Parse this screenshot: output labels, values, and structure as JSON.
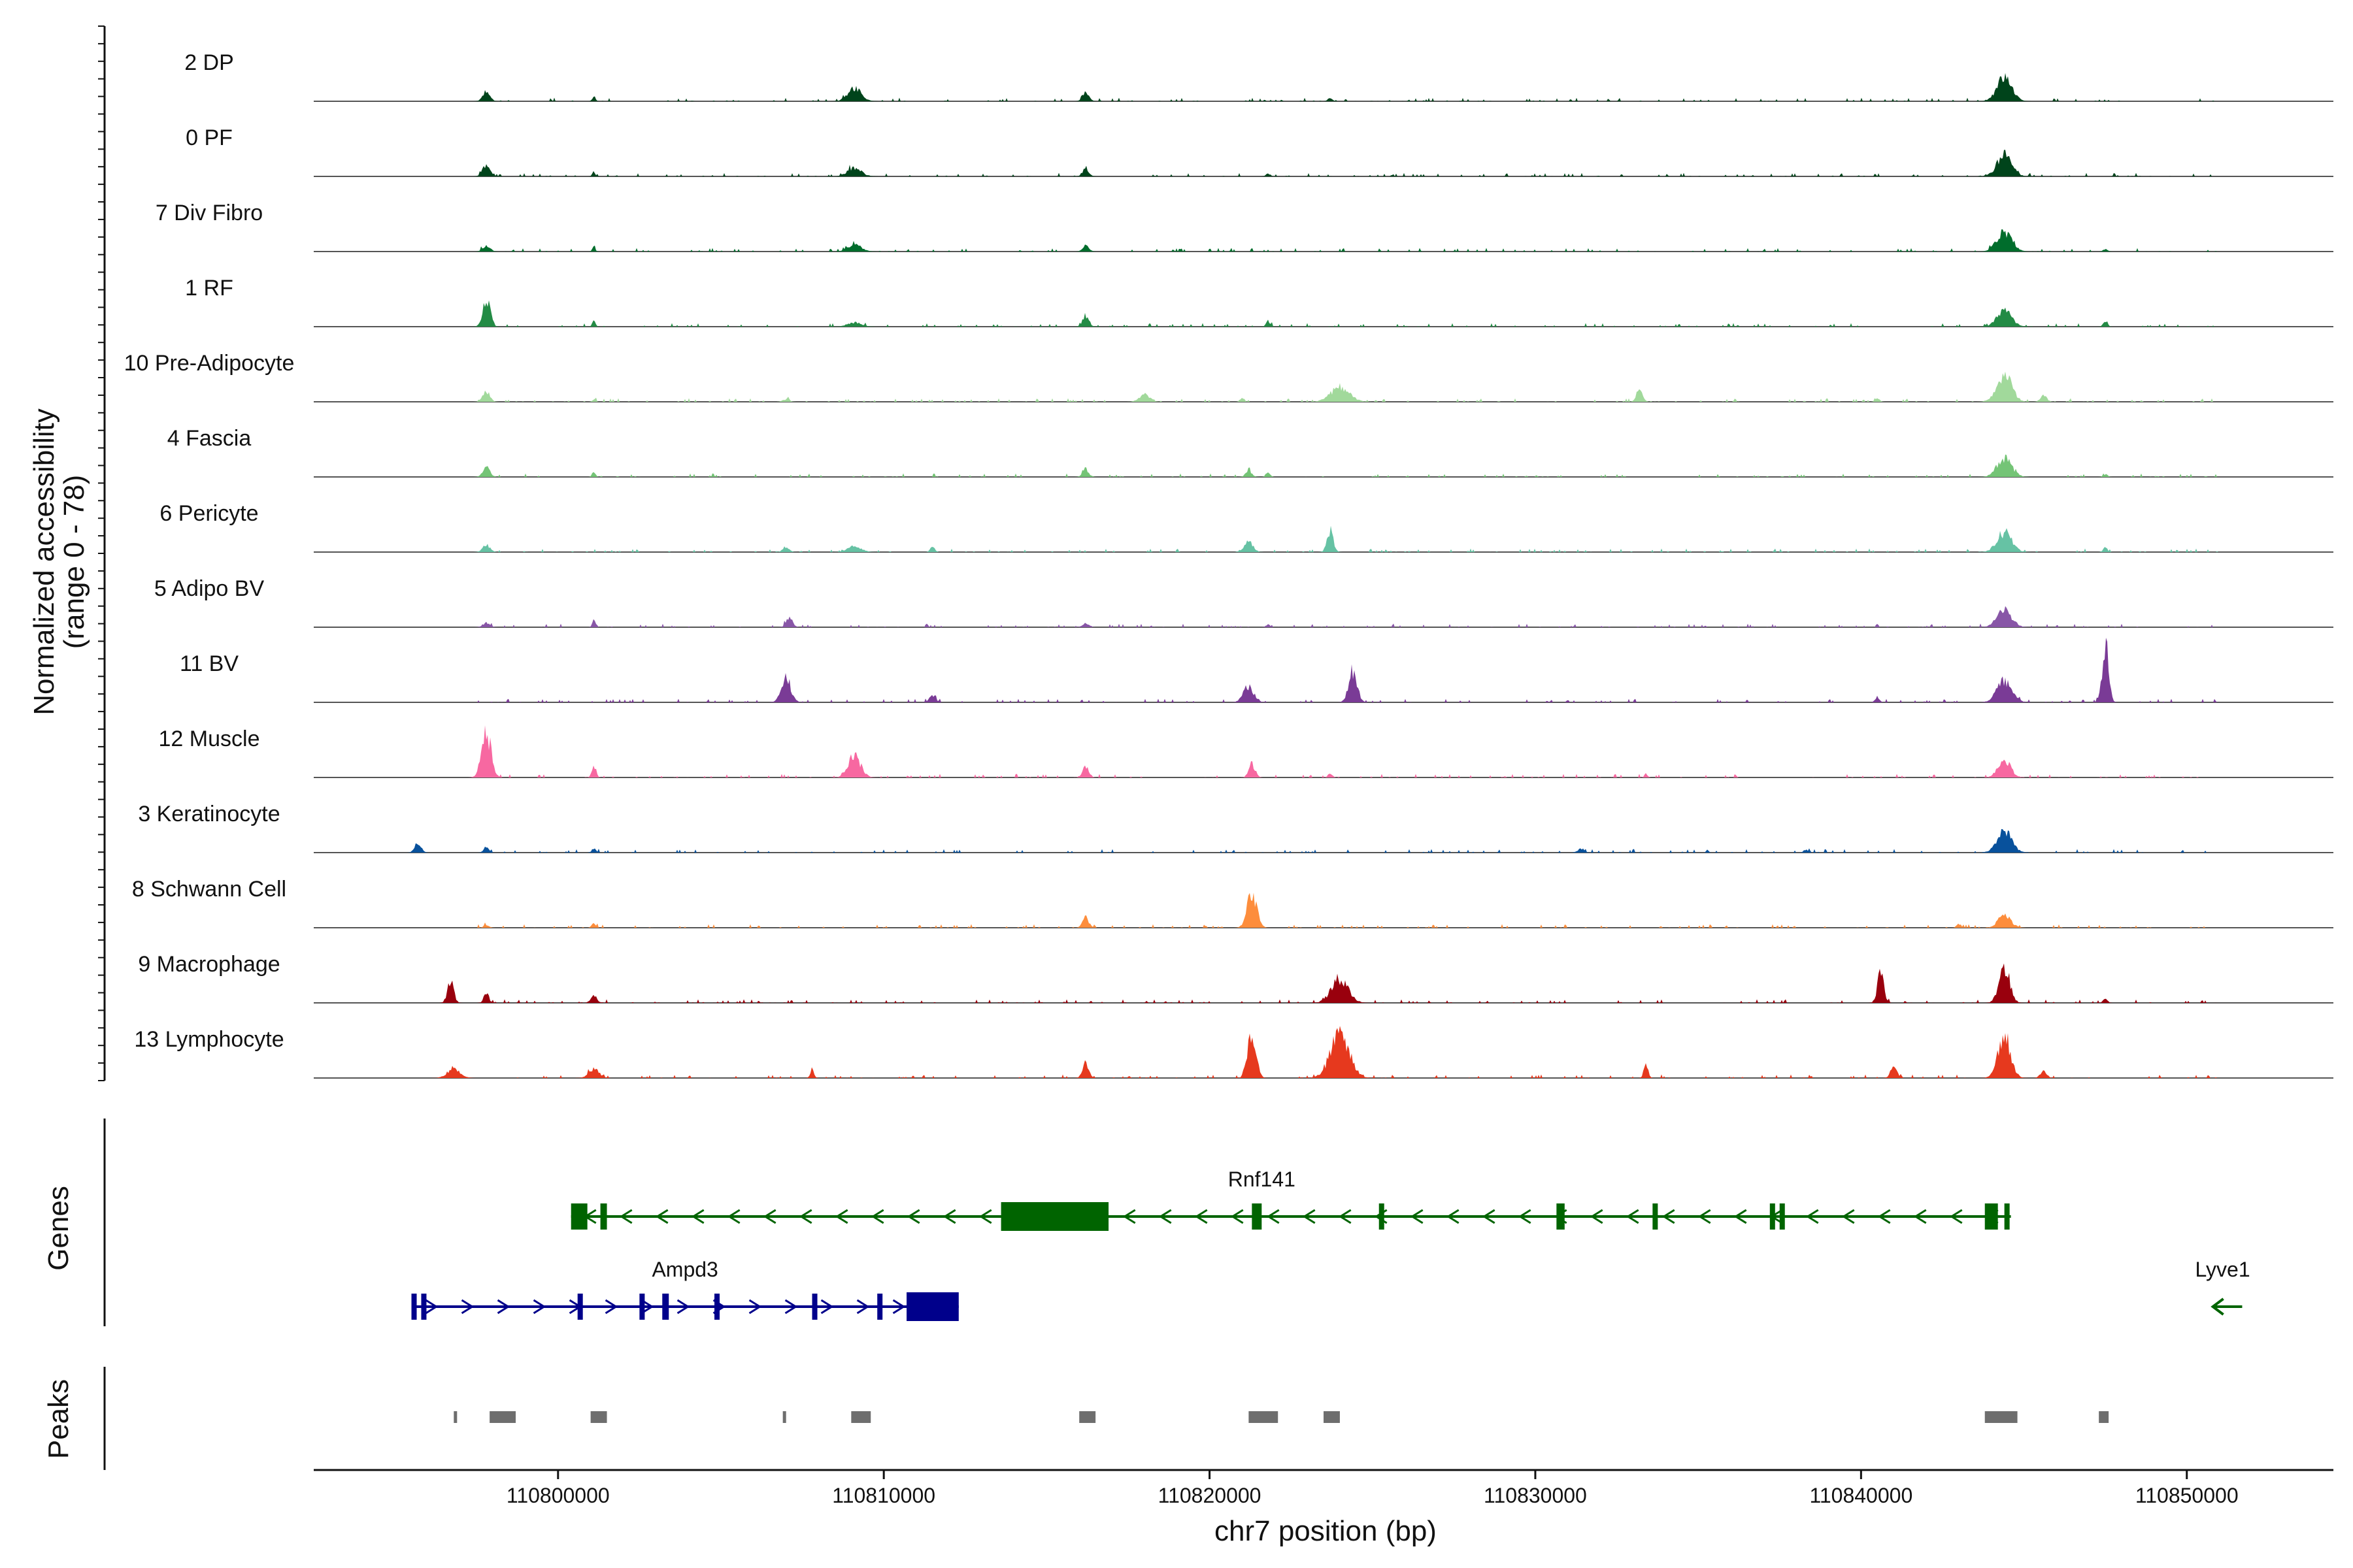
{
  "chart_data": {
    "type": "area",
    "title": "",
    "chromosome": "chr7",
    "xlabel": "chr7 position (bp)",
    "ylabel": "Normalized accessibility",
    "ylabel_range": "(range 0 - 78)",
    "ylim": [
      0,
      78
    ],
    "xlim": [
      110792500,
      110854500
    ],
    "x_ticks": [
      110800000,
      110810000,
      110820000,
      110830000,
      110840000,
      110850000
    ],
    "x_tick_labels": [
      "110800000",
      "110810000",
      "110820000",
      "110830000",
      "110840000",
      "110850000"
    ],
    "genes_panel_label": "Genes",
    "peaks_panel_label": "Peaks",
    "tracks": [
      {
        "name": "2 DP",
        "color": "#00441b",
        "peaks": [
          [
            110797800,
            12,
            350
          ],
          [
            110801100,
            8,
            150
          ],
          [
            110809100,
            18,
            650
          ],
          [
            110816200,
            14,
            300
          ],
          [
            110823700,
            5,
            200
          ],
          [
            110844400,
            34,
            700
          ]
        ]
      },
      {
        "name": "0 PF",
        "color": "#00441b",
        "peaks": [
          [
            110797800,
            16,
            350
          ],
          [
            110801100,
            6,
            150
          ],
          [
            110809100,
            12,
            650
          ],
          [
            110816200,
            12,
            300
          ],
          [
            110821800,
            4,
            200
          ],
          [
            110844400,
            30,
            700
          ]
        ]
      },
      {
        "name": "7 Div Fibro",
        "color": "#006d2c",
        "peaks": [
          [
            110797800,
            8,
            350
          ],
          [
            110801100,
            6,
            150
          ],
          [
            110809100,
            10,
            650
          ],
          [
            110816200,
            8,
            300
          ],
          [
            110844400,
            28,
            700
          ],
          [
            110847500,
            4,
            200
          ]
        ]
      },
      {
        "name": "1 RF",
        "color": "#238b45",
        "peaks": [
          [
            110797800,
            40,
            350
          ],
          [
            110801100,
            10,
            150
          ],
          [
            110809100,
            6,
            650
          ],
          [
            110816200,
            16,
            300
          ],
          [
            110821800,
            8,
            200
          ],
          [
            110844400,
            22,
            700
          ],
          [
            110847500,
            8,
            200
          ]
        ]
      },
      {
        "name": "10 Pre-Adipocyte",
        "color": "#a1d99b",
        "peaks": [
          [
            110797800,
            14,
            350
          ],
          [
            110801100,
            4,
            150
          ],
          [
            110807000,
            4,
            300
          ],
          [
            110818000,
            10,
            500
          ],
          [
            110821000,
            6,
            200
          ],
          [
            110824000,
            20,
            900
          ],
          [
            110833200,
            14,
            300
          ],
          [
            110840500,
            6,
            200
          ],
          [
            110844400,
            38,
            700
          ],
          [
            110845600,
            10,
            300
          ]
        ]
      },
      {
        "name": "4 Fascia",
        "color": "#74c476",
        "peaks": [
          [
            110797800,
            12,
            350
          ],
          [
            110801100,
            8,
            150
          ],
          [
            110816200,
            10,
            300
          ],
          [
            110821200,
            8,
            300
          ],
          [
            110821800,
            6,
            200
          ],
          [
            110844400,
            26,
            700
          ],
          [
            110847500,
            4,
            200
          ]
        ]
      },
      {
        "name": "6 Pericyte",
        "color": "#66c2a4",
        "peaks": [
          [
            110797800,
            10,
            350
          ],
          [
            110807000,
            8,
            300
          ],
          [
            110809100,
            8,
            650
          ],
          [
            110811500,
            10,
            200
          ],
          [
            110821200,
            16,
            400
          ],
          [
            110823700,
            30,
            300
          ],
          [
            110844400,
            28,
            700
          ],
          [
            110847500,
            6,
            200
          ]
        ]
      },
      {
        "name": "5 Adipo BV",
        "color": "#8856a7",
        "peaks": [
          [
            110797800,
            6,
            350
          ],
          [
            110801100,
            10,
            150
          ],
          [
            110807100,
            14,
            300
          ],
          [
            110816200,
            6,
            300
          ],
          [
            110821800,
            4,
            200
          ],
          [
            110844400,
            24,
            700
          ]
        ]
      },
      {
        "name": "11 BV",
        "color": "#7a3b96",
        "peaks": [
          [
            110807000,
            34,
            450
          ],
          [
            110811500,
            10,
            300
          ],
          [
            110821200,
            22,
            500
          ],
          [
            110824400,
            44,
            400
          ],
          [
            110844400,
            30,
            700
          ],
          [
            110847500,
            78,
            300
          ],
          [
            110840500,
            8,
            200
          ]
        ]
      },
      {
        "name": "12 Muscle",
        "color": "#f768a1",
        "peaks": [
          [
            110797800,
            62,
            450
          ],
          [
            110801100,
            18,
            200
          ],
          [
            110809100,
            30,
            600
          ],
          [
            110816200,
            16,
            300
          ],
          [
            110821300,
            20,
            300
          ],
          [
            110823700,
            6,
            200
          ],
          [
            110844400,
            24,
            600
          ],
          [
            110833400,
            6,
            150
          ]
        ]
      },
      {
        "name": "3 Keratinocyte",
        "color": "#08519c",
        "peaks": [
          [
            110795700,
            14,
            300
          ],
          [
            110797800,
            8,
            250
          ],
          [
            110801100,
            6,
            200
          ],
          [
            110831400,
            6,
            300
          ],
          [
            110838300,
            4,
            200
          ],
          [
            110844400,
            30,
            700
          ]
        ]
      },
      {
        "name": "8 Schwann Cell",
        "color": "#fd8d3c",
        "peaks": [
          [
            110797800,
            4,
            250
          ],
          [
            110801100,
            6,
            200
          ],
          [
            110816200,
            14,
            300
          ],
          [
            110821300,
            48,
            450
          ],
          [
            110843000,
            6,
            200
          ],
          [
            110844400,
            18,
            600
          ]
        ]
      },
      {
        "name": "9 Macrophage",
        "color": "#99000d",
        "peaks": [
          [
            110796700,
            30,
            300
          ],
          [
            110797800,
            12,
            250
          ],
          [
            110801100,
            10,
            300
          ],
          [
            110824000,
            34,
            800
          ],
          [
            110840600,
            44,
            300
          ],
          [
            110844400,
            52,
            500
          ],
          [
            110847500,
            6,
            200
          ]
        ]
      },
      {
        "name": "13 Lymphocyte",
        "color": "#e6391e",
        "peaks": [
          [
            110796800,
            14,
            600
          ],
          [
            110801100,
            12,
            500
          ],
          [
            110807800,
            10,
            200
          ],
          [
            110816200,
            20,
            300
          ],
          [
            110821300,
            62,
            400
          ],
          [
            110824000,
            60,
            900
          ],
          [
            110833400,
            20,
            200
          ],
          [
            110841000,
            16,
            300
          ],
          [
            110844400,
            58,
            600
          ],
          [
            110845600,
            10,
            300
          ]
        ]
      }
    ],
    "genes": [
      {
        "name": "Rnf141",
        "strand": "-",
        "start": 110800400,
        "end": 110844600,
        "color": "#006400",
        "label_at": 110821600,
        "exons": [
          [
            110800400,
            110800900
          ],
          [
            110801300,
            110801500
          ],
          [
            110813600,
            110816900
          ],
          [
            110821300,
            110821600
          ],
          [
            110825200,
            110825350
          ],
          [
            110830650,
            110830900
          ],
          [
            110833600,
            110833700
          ],
          [
            110837200,
            110837300
          ],
          [
            110837500,
            110837600
          ],
          [
            110843800,
            110844200
          ],
          [
            110844400,
            110844500
          ]
        ]
      },
      {
        "name": "Ampd3",
        "strand": "+",
        "start": 110795500,
        "end": 110812300,
        "color": "#00008b",
        "label_at": 110803900,
        "exons": [
          [
            110795500,
            110795600
          ],
          [
            110795800,
            110795900
          ],
          [
            110800600,
            110800750
          ],
          [
            110802500,
            110802650
          ],
          [
            110803200,
            110803400
          ],
          [
            110804800,
            110804950
          ],
          [
            110807800,
            110807950
          ],
          [
            110809800,
            110809900
          ],
          [
            110810700,
            110812300
          ]
        ]
      },
      {
        "name": "Lyve1",
        "strand": "-",
        "start": 110850800,
        "end": 110851700,
        "color": "#006400",
        "label_at": 110851100,
        "exons": []
      }
    ],
    "peak_regions": [
      [
        110796800,
        110796900
      ],
      [
        110797900,
        110798700
      ],
      [
        110801000,
        110801500
      ],
      [
        110806900,
        110807000
      ],
      [
        110809000,
        110809600
      ],
      [
        110816000,
        110816500
      ],
      [
        110821200,
        110822100
      ],
      [
        110823500,
        110824000
      ],
      [
        110843800,
        110844800
      ],
      [
        110847300,
        110847600
      ]
    ]
  }
}
